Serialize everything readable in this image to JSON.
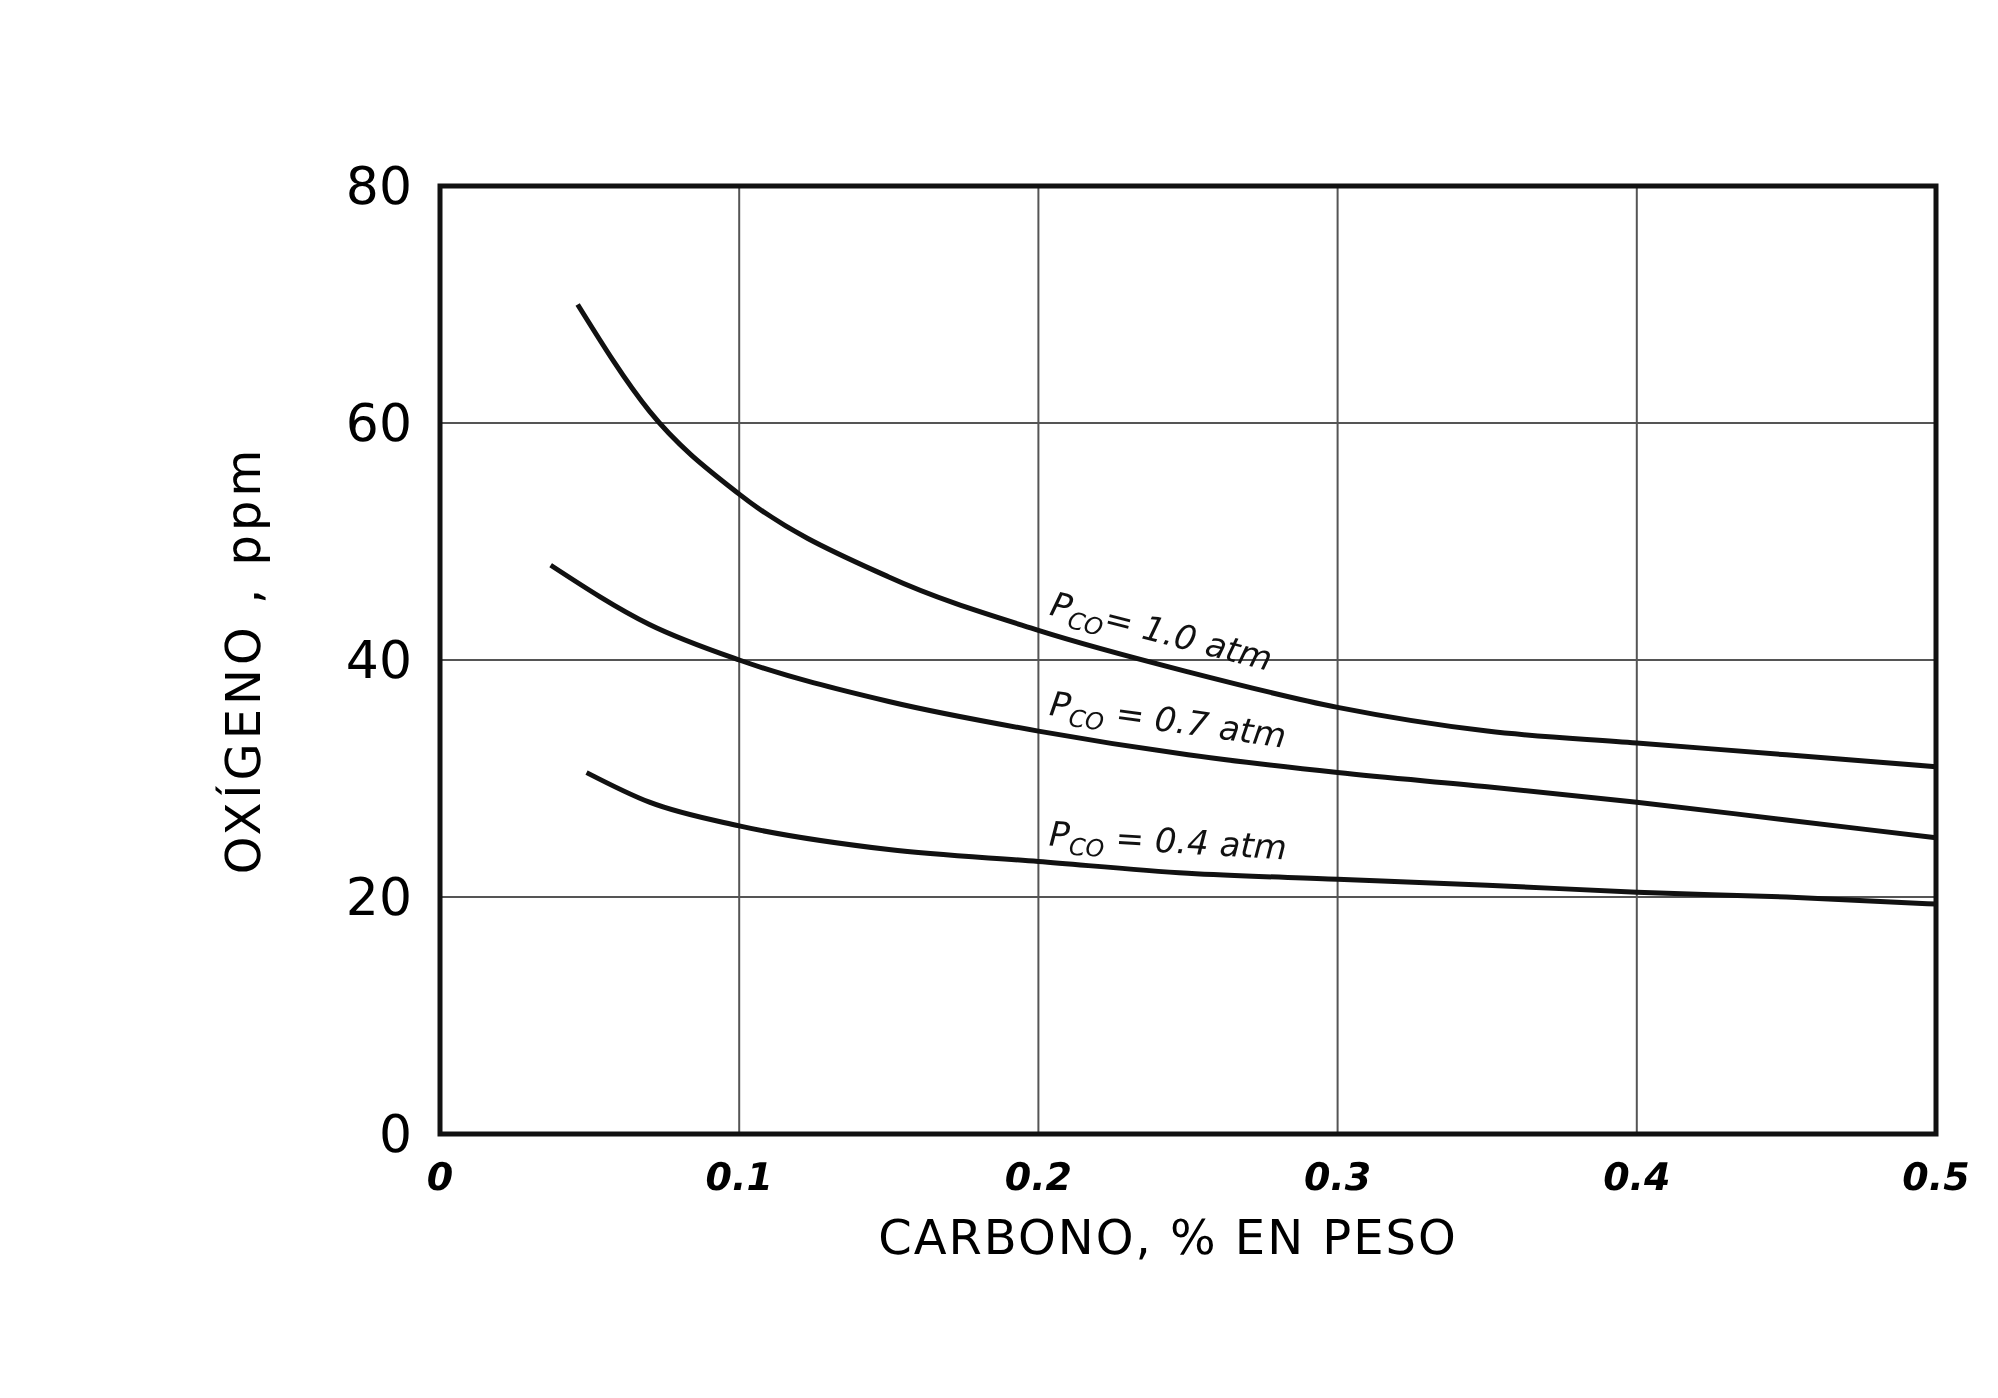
{
  "chart_data": {
    "type": "line",
    "xlabel": "CARBONO, % EN PESO",
    "ylabel": "OXÍGENO , ppm",
    "xlim": [
      0,
      0.5
    ],
    "ylim": [
      0,
      80
    ],
    "xticks": [
      0,
      0.1,
      0.2,
      0.3,
      0.4,
      0.5
    ],
    "yticks": [
      0,
      20,
      40,
      60,
      80
    ],
    "grid": true,
    "legend": false,
    "marker": "none",
    "line_style": "solid",
    "series": [
      {
        "name": "P$_{CO}$= 1.0 atm",
        "color": "#111111",
        "x": [
          0.046,
          0.07,
          0.1,
          0.15,
          0.2,
          0.25,
          0.3,
          0.35,
          0.4,
          0.45,
          0.5
        ],
        "values": [
          70,
          61,
          54,
          47,
          42.5,
          39,
          36,
          34,
          33,
          32,
          31
        ]
      },
      {
        "name": "P$_{CO}$ = 0.7 atm",
        "color": "#111111",
        "x": [
          0.037,
          0.07,
          0.1,
          0.15,
          0.2,
          0.25,
          0.3,
          0.35,
          0.4,
          0.45,
          0.5
        ],
        "values": [
          48,
          43,
          40,
          36.5,
          34,
          32,
          30.5,
          29.3,
          28,
          26.5,
          25
        ]
      },
      {
        "name": "P$_{CO}$ = 0.4 atm",
        "color": "#111111",
        "x": [
          0.049,
          0.07,
          0.1,
          0.15,
          0.2,
          0.25,
          0.3,
          0.35,
          0.4,
          0.45,
          0.5
        ],
        "values": [
          30.5,
          28,
          26,
          24,
          23,
          22,
          21.5,
          21,
          20.4,
          20,
          19.4
        ]
      }
    ]
  }
}
